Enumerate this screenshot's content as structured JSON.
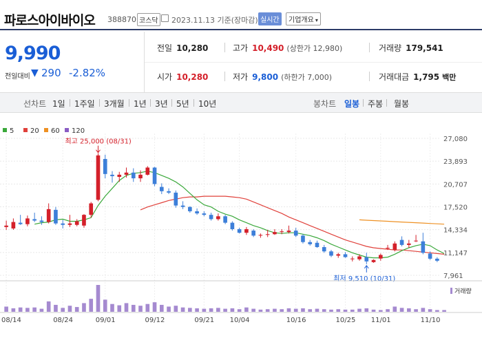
{
  "header": {
    "stock_name": "파로스아이바이오",
    "stock_code": "388870",
    "market": "코스닥",
    "date_text": "2023.11.13  기준(장마감)",
    "realtime_label": "실시간",
    "company_label": "기업개요",
    "company_arrow": "▾"
  },
  "price": {
    "current": "9,990",
    "change_label": "전일대비",
    "change_arrow": "▼",
    "change_value": "290",
    "change_pct": "-2.82%"
  },
  "stats": {
    "prev_label": "전일",
    "prev_value": "10,280",
    "high_label": "고가",
    "high_value": "10,490",
    "upper_limit": "(상한가 12,980)",
    "volume_label": "거래량",
    "volume_value": "179,541",
    "open_label": "시가",
    "open_value": "10,280",
    "low_label": "저가",
    "low_value": "9,800",
    "lower_limit": "(하한가 7,000)",
    "amount_label": "거래대금",
    "amount_value": "1,795",
    "amount_unit": "백만"
  },
  "toolbar": {
    "line_chart_label": "선차트",
    "periods": [
      "1일",
      "1주일",
      "3개월",
      "1년",
      "3년",
      "5년",
      "10년"
    ],
    "candle_label": "봉차트",
    "candle_periods": [
      "일봉",
      "주봉",
      "월봉"
    ],
    "active_candle": "일봉"
  },
  "colors": {
    "up": "#d4202a",
    "down": "#3d7fd9",
    "ma5": "#3aa83a",
    "ma20": "#e0403a",
    "ma60": "#ee9022",
    "ma120": "#8a5cc4",
    "volume": "#a58ad0"
  },
  "chart_data": {
    "type": "candlestick",
    "legend": [
      {
        "name": "5",
        "color": "#3aa83a"
      },
      {
        "name": "20",
        "color": "#e0403a"
      },
      {
        "name": "60",
        "color": "#ee9022"
      },
      {
        "name": "120",
        "color": "#8a5cc4"
      }
    ],
    "y_ticks": [
      7961,
      11147,
      14334,
      17520,
      20707,
      23893,
      27080
    ],
    "y_tick_labels": [
      "7,961",
      "11,147",
      "14,334",
      "17,520",
      "20,707",
      "23,893",
      "27,080"
    ],
    "ylim": [
      7961,
      27080
    ],
    "x_tick_labels": [
      "08/14",
      "08/24",
      "09/01",
      "09/12",
      "09/21",
      "10/04",
      "10/16",
      "10/25",
      "11/01",
      "11/10"
    ],
    "x_tick_index": [
      0,
      8,
      14,
      21,
      28,
      33,
      41,
      48,
      53,
      60
    ],
    "max_annotation": {
      "text": "최고 25,000 (08/31)",
      "index": 13,
      "value": 25000
    },
    "min_annotation": {
      "text": "최저 9,510 (10/31)",
      "index": 51,
      "value": 9510
    },
    "volume_label": "거래량",
    "candles": [
      {
        "o": 14700,
        "h": 15600,
        "l": 14300,
        "c": 14900
      },
      {
        "o": 14500,
        "h": 15900,
        "l": 14300,
        "c": 15400
      },
      {
        "o": 15300,
        "h": 16400,
        "l": 15000,
        "c": 15100
      },
      {
        "o": 15100,
        "h": 16300,
        "l": 14800,
        "c": 15900
      },
      {
        "o": 15800,
        "h": 16700,
        "l": 15400,
        "c": 15600
      },
      {
        "o": 15600,
        "h": 16200,
        "l": 15000,
        "c": 15400
      },
      {
        "o": 15400,
        "h": 18000,
        "l": 15200,
        "c": 17200
      },
      {
        "o": 17100,
        "h": 17500,
        "l": 15000,
        "c": 15200
      },
      {
        "o": 15200,
        "h": 15700,
        "l": 14500,
        "c": 15000
      },
      {
        "o": 15000,
        "h": 16400,
        "l": 14700,
        "c": 15200
      },
      {
        "o": 15000,
        "h": 15800,
        "l": 14800,
        "c": 15500
      },
      {
        "o": 14900,
        "h": 16500,
        "l": 14600,
        "c": 16400
      },
      {
        "o": 16400,
        "h": 18200,
        "l": 16000,
        "c": 18000
      },
      {
        "o": 18500,
        "h": 25000,
        "l": 18300,
        "c": 24700
      },
      {
        "o": 24200,
        "h": 24800,
        "l": 21500,
        "c": 22100
      },
      {
        "o": 22000,
        "h": 22500,
        "l": 20900,
        "c": 21800
      },
      {
        "o": 21700,
        "h": 22400,
        "l": 21000,
        "c": 22000
      },
      {
        "o": 22000,
        "h": 23000,
        "l": 21600,
        "c": 22300
      },
      {
        "o": 22300,
        "h": 22900,
        "l": 21000,
        "c": 21500
      },
      {
        "o": 21500,
        "h": 22600,
        "l": 21000,
        "c": 22000
      },
      {
        "o": 22000,
        "h": 23200,
        "l": 21900,
        "c": 23000
      },
      {
        "o": 23000,
        "h": 23100,
        "l": 20400,
        "c": 20700
      },
      {
        "o": 20300,
        "h": 20800,
        "l": 19300,
        "c": 19700
      },
      {
        "o": 19700,
        "h": 20100,
        "l": 19300,
        "c": 19500
      },
      {
        "o": 19500,
        "h": 19800,
        "l": 17400,
        "c": 17700
      },
      {
        "o": 17700,
        "h": 18300,
        "l": 17200,
        "c": 17500
      },
      {
        "o": 17500,
        "h": 17600,
        "l": 16700,
        "c": 16900
      },
      {
        "o": 16900,
        "h": 17300,
        "l": 16400,
        "c": 16600
      },
      {
        "o": 16600,
        "h": 16900,
        "l": 16200,
        "c": 16400
      },
      {
        "o": 16400,
        "h": 16700,
        "l": 15600,
        "c": 15800
      },
      {
        "o": 15800,
        "h": 16600,
        "l": 15600,
        "c": 16200
      },
      {
        "o": 16200,
        "h": 16400,
        "l": 15100,
        "c": 15300
      },
      {
        "o": 15300,
        "h": 15500,
        "l": 14200,
        "c": 14400
      },
      {
        "o": 14400,
        "h": 14600,
        "l": 13800,
        "c": 13900
      },
      {
        "o": 13900,
        "h": 14700,
        "l": 13600,
        "c": 14400
      },
      {
        "o": 14200,
        "h": 14400,
        "l": 13300,
        "c": 13500
      },
      {
        "o": 13500,
        "h": 13800,
        "l": 13200,
        "c": 13600
      },
      {
        "o": 13600,
        "h": 14300,
        "l": 13300,
        "c": 13700
      },
      {
        "o": 13700,
        "h": 14400,
        "l": 13600,
        "c": 14000
      },
      {
        "o": 14000,
        "h": 14400,
        "l": 13700,
        "c": 14100
      },
      {
        "o": 14000,
        "h": 14900,
        "l": 13800,
        "c": 14200
      },
      {
        "o": 14200,
        "h": 14600,
        "l": 13300,
        "c": 13500
      },
      {
        "o": 13500,
        "h": 13700,
        "l": 12400,
        "c": 12600
      },
      {
        "o": 12600,
        "h": 12900,
        "l": 12100,
        "c": 12300
      },
      {
        "o": 12500,
        "h": 12800,
        "l": 11800,
        "c": 11900
      },
      {
        "o": 11900,
        "h": 12200,
        "l": 11100,
        "c": 11300
      },
      {
        "o": 11300,
        "h": 11500,
        "l": 10500,
        "c": 10700
      },
      {
        "o": 10700,
        "h": 11100,
        "l": 10400,
        "c": 10900
      },
      {
        "o": 10900,
        "h": 11200,
        "l": 10400,
        "c": 10500
      },
      {
        "o": 10300,
        "h": 10600,
        "l": 9900,
        "c": 10300
      },
      {
        "o": 10200,
        "h": 10900,
        "l": 10000,
        "c": 10600
      },
      {
        "o": 10500,
        "h": 11100,
        "l": 9510,
        "c": 9900
      },
      {
        "o": 9800,
        "h": 10200,
        "l": 9700,
        "c": 10100
      },
      {
        "o": 10300,
        "h": 11000,
        "l": 10000,
        "c": 10800
      },
      {
        "o": 11700,
        "h": 12200,
        "l": 11500,
        "c": 11800
      },
      {
        "o": 11500,
        "h": 12700,
        "l": 11300,
        "c": 12400
      },
      {
        "o": 12900,
        "h": 13400,
        "l": 12000,
        "c": 12200
      },
      {
        "o": 12200,
        "h": 12900,
        "l": 11800,
        "c": 12400
      },
      {
        "o": 12800,
        "h": 13600,
        "l": 12600,
        "c": 12800
      },
      {
        "o": 12700,
        "h": 13900,
        "l": 10900,
        "c": 11100
      },
      {
        "o": 11000,
        "h": 11300,
        "l": 10100,
        "c": 10280
      },
      {
        "o": 10280,
        "h": 10490,
        "l": 9800,
        "c": 9990
      }
    ],
    "ma5": [
      null,
      null,
      null,
      null,
      15100,
      15300,
      15400,
      15700,
      15800,
      15500,
      15500,
      15700,
      16000,
      17700,
      19000,
      20100,
      21200,
      21900,
      22200,
      22300,
      22500,
      22300,
      21900,
      21500,
      21000,
      20300,
      19400,
      18500,
      17800,
      17500,
      16900,
      16500,
      16200,
      15700,
      15300,
      14900,
      14600,
      14200,
      13900,
      13800,
      13900,
      13900,
      13700,
      13500,
      13200,
      12800,
      12300,
      11900,
      11500,
      11100,
      10800,
      10500,
      10400,
      10400,
      10500,
      10900,
      11400,
      11800,
      12100,
      12300,
      12100,
      11500,
      11000
    ],
    "ma20": [
      null,
      null,
      null,
      null,
      null,
      null,
      null,
      null,
      null,
      null,
      null,
      null,
      null,
      null,
      null,
      null,
      null,
      null,
      null,
      17100,
      17500,
      17800,
      18100,
      18400,
      18600,
      18800,
      18900,
      18900,
      19000,
      19000,
      19000,
      19000,
      18900,
      18800,
      18600,
      18200,
      17800,
      17400,
      17000,
      16600,
      16100,
      15700,
      15300,
      14900,
      14500,
      14100,
      13700,
      13300,
      12900,
      12600,
      12300,
      12000,
      11800,
      11700,
      11600,
      11500,
      11500,
      11400,
      11300,
      11200,
      11100,
      11000,
      10900
    ],
    "ma60": [
      null,
      null,
      null,
      null,
      null,
      null,
      null,
      null,
      null,
      null,
      null,
      null,
      null,
      null,
      null,
      null,
      null,
      null,
      null,
      null,
      null,
      null,
      null,
      null,
      null,
      null,
      null,
      null,
      null,
      null,
      null,
      null,
      null,
      null,
      null,
      null,
      null,
      null,
      null,
      null,
      null,
      null,
      null,
      null,
      null,
      null,
      null,
      null,
      null,
      null,
      15700,
      15650,
      15600,
      15550,
      15500,
      15450,
      15400,
      15350,
      15300,
      15250,
      15200,
      15150,
      15100
    ],
    "volume": [
      12,
      8,
      10,
      9,
      10,
      7,
      24,
      16,
      9,
      14,
      11,
      20,
      30,
      62,
      28,
      18,
      15,
      20,
      16,
      14,
      18,
      22,
      16,
      12,
      14,
      10,
      9,
      8,
      7,
      8,
      9,
      7,
      8,
      6,
      10,
      7,
      5,
      6,
      7,
      6,
      8,
      7,
      8,
      6,
      7,
      6,
      5,
      6,
      5,
      5,
      7,
      8,
      5,
      4,
      6,
      12,
      9,
      8,
      6,
      9,
      6,
      4,
      4
    ]
  }
}
